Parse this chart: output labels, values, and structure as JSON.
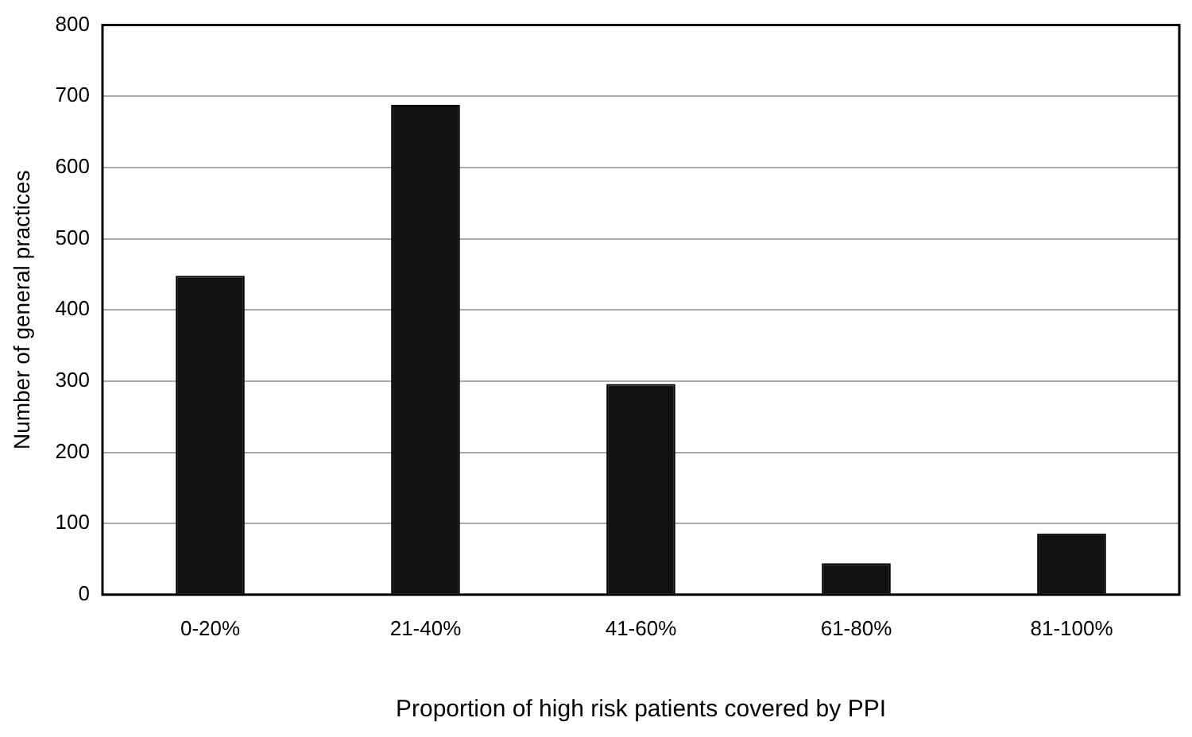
{
  "chart_data": {
    "type": "bar",
    "xlabel": "Proportion of high risk patients covered by PPI",
    "ylabel": "Number of general practices",
    "categories": [
      "0-20%",
      "21-40%",
      "41-60%",
      "61-80%",
      "81-100%"
    ],
    "values": [
      448,
      688,
      296,
      44,
      86
    ],
    "color": "#111111",
    "ylim": [
      0,
      800
    ],
    "yticks": [
      0,
      100,
      200,
      300,
      400,
      500,
      600,
      700,
      800
    ],
    "grid": "y",
    "legend": false
  }
}
